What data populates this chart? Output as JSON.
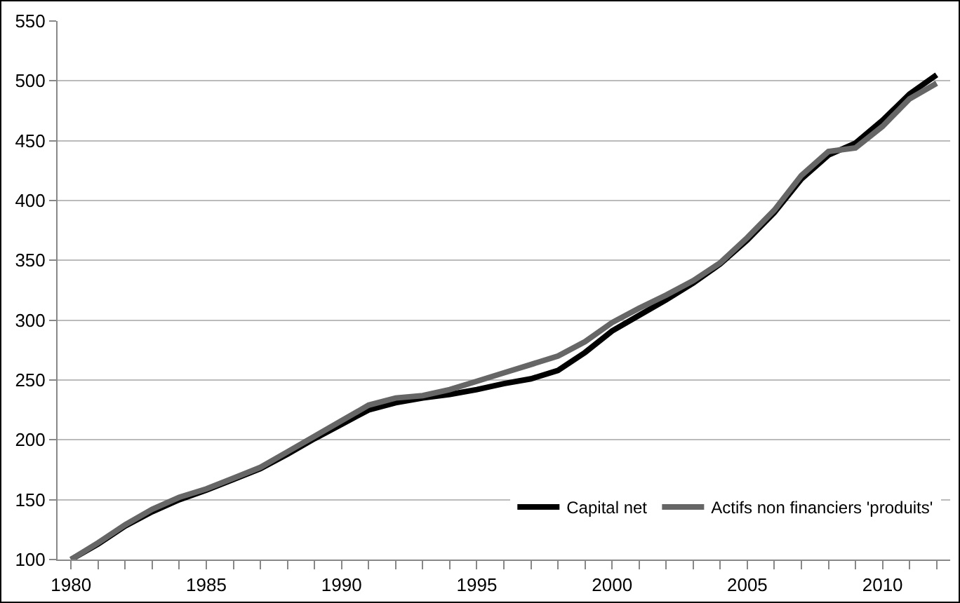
{
  "chart_data": {
    "type": "line",
    "x": [
      1980,
      1981,
      1982,
      1983,
      1984,
      1985,
      1986,
      1987,
      1988,
      1989,
      1990,
      1991,
      1992,
      1993,
      1994,
      1995,
      1996,
      1997,
      1998,
      1999,
      2000,
      2001,
      2002,
      2003,
      2004,
      2005,
      2006,
      2007,
      2008,
      2009,
      2010,
      2011,
      2012
    ],
    "series": [
      {
        "name": "Capital net",
        "color": "#000000",
        "values": [
          100,
          113,
          128,
          140,
          150,
          158,
          167,
          176,
          188,
          201,
          213,
          225,
          231,
          235,
          238,
          242,
          247,
          251,
          258,
          273,
          291,
          304,
          317,
          331,
          347,
          367,
          390,
          418,
          438,
          448,
          467,
          489,
          505
        ]
      },
      {
        "name": "Actifs non financiers 'produits'",
        "color": "#666666",
        "values": [
          100,
          114,
          129,
          142,
          152,
          159,
          168,
          177,
          190,
          203,
          216,
          229,
          235,
          237,
          242,
          249,
          256,
          263,
          270,
          282,
          298,
          310,
          321,
          333,
          348,
          369,
          392,
          421,
          441,
          444,
          462,
          485,
          498
        ]
      }
    ],
    "xlim": [
      1979.5,
      2012.5
    ],
    "xticks": [
      1980,
      1985,
      1990,
      1995,
      2000,
      2005,
      2010
    ],
    "ylim": [
      100,
      550
    ],
    "yticks": [
      100,
      150,
      200,
      250,
      300,
      350,
      400,
      450,
      500,
      550
    ],
    "grid": "y",
    "legend": "bottom right",
    "line_style": "solid",
    "marker": "none"
  }
}
